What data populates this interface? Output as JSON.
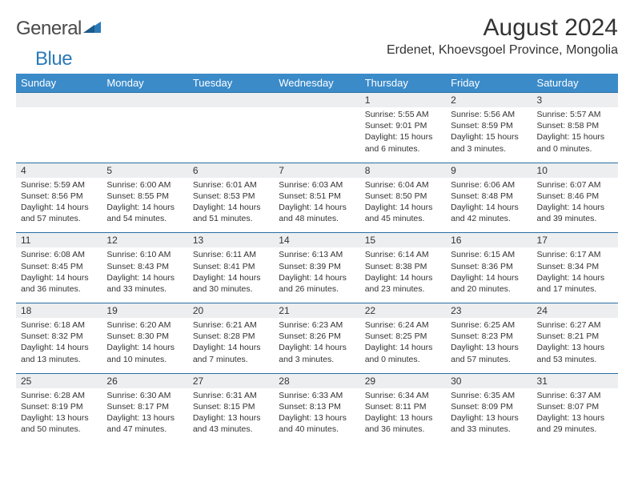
{
  "logo": {
    "text1": "General",
    "text2": "Blue"
  },
  "title": "August 2024",
  "location": "Erdenet, Khoevsgoel Province, Mongolia",
  "colors": {
    "header_bg": "#3b8bc9",
    "header_text": "#ffffff",
    "daynum_bg": "#eceef0",
    "row_border": "#2a6fa3",
    "logo_blue": "#2a7ab8",
    "text": "#333333",
    "page_bg": "#ffffff"
  },
  "fonts": {
    "title_size": 30,
    "location_size": 16,
    "weekday_size": 13,
    "daynum_size": 12,
    "detail_size": 10.5
  },
  "weekdays": [
    "Sunday",
    "Monday",
    "Tuesday",
    "Wednesday",
    "Thursday",
    "Friday",
    "Saturday"
  ],
  "weeks": [
    [
      null,
      null,
      null,
      null,
      {
        "n": "1",
        "sr": "5:55 AM",
        "ss": "9:01 PM",
        "dl": "15 hours and 6 minutes."
      },
      {
        "n": "2",
        "sr": "5:56 AM",
        "ss": "8:59 PM",
        "dl": "15 hours and 3 minutes."
      },
      {
        "n": "3",
        "sr": "5:57 AM",
        "ss": "8:58 PM",
        "dl": "15 hours and 0 minutes."
      }
    ],
    [
      {
        "n": "4",
        "sr": "5:59 AM",
        "ss": "8:56 PM",
        "dl": "14 hours and 57 minutes."
      },
      {
        "n": "5",
        "sr": "6:00 AM",
        "ss": "8:55 PM",
        "dl": "14 hours and 54 minutes."
      },
      {
        "n": "6",
        "sr": "6:01 AM",
        "ss": "8:53 PM",
        "dl": "14 hours and 51 minutes."
      },
      {
        "n": "7",
        "sr": "6:03 AM",
        "ss": "8:51 PM",
        "dl": "14 hours and 48 minutes."
      },
      {
        "n": "8",
        "sr": "6:04 AM",
        "ss": "8:50 PM",
        "dl": "14 hours and 45 minutes."
      },
      {
        "n": "9",
        "sr": "6:06 AM",
        "ss": "8:48 PM",
        "dl": "14 hours and 42 minutes."
      },
      {
        "n": "10",
        "sr": "6:07 AM",
        "ss": "8:46 PM",
        "dl": "14 hours and 39 minutes."
      }
    ],
    [
      {
        "n": "11",
        "sr": "6:08 AM",
        "ss": "8:45 PM",
        "dl": "14 hours and 36 minutes."
      },
      {
        "n": "12",
        "sr": "6:10 AM",
        "ss": "8:43 PM",
        "dl": "14 hours and 33 minutes."
      },
      {
        "n": "13",
        "sr": "6:11 AM",
        "ss": "8:41 PM",
        "dl": "14 hours and 30 minutes."
      },
      {
        "n": "14",
        "sr": "6:13 AM",
        "ss": "8:39 PM",
        "dl": "14 hours and 26 minutes."
      },
      {
        "n": "15",
        "sr": "6:14 AM",
        "ss": "8:38 PM",
        "dl": "14 hours and 23 minutes."
      },
      {
        "n": "16",
        "sr": "6:15 AM",
        "ss": "8:36 PM",
        "dl": "14 hours and 20 minutes."
      },
      {
        "n": "17",
        "sr": "6:17 AM",
        "ss": "8:34 PM",
        "dl": "14 hours and 17 minutes."
      }
    ],
    [
      {
        "n": "18",
        "sr": "6:18 AM",
        "ss": "8:32 PM",
        "dl": "14 hours and 13 minutes."
      },
      {
        "n": "19",
        "sr": "6:20 AM",
        "ss": "8:30 PM",
        "dl": "14 hours and 10 minutes."
      },
      {
        "n": "20",
        "sr": "6:21 AM",
        "ss": "8:28 PM",
        "dl": "14 hours and 7 minutes."
      },
      {
        "n": "21",
        "sr": "6:23 AM",
        "ss": "8:26 PM",
        "dl": "14 hours and 3 minutes."
      },
      {
        "n": "22",
        "sr": "6:24 AM",
        "ss": "8:25 PM",
        "dl": "14 hours and 0 minutes."
      },
      {
        "n": "23",
        "sr": "6:25 AM",
        "ss": "8:23 PM",
        "dl": "13 hours and 57 minutes."
      },
      {
        "n": "24",
        "sr": "6:27 AM",
        "ss": "8:21 PM",
        "dl": "13 hours and 53 minutes."
      }
    ],
    [
      {
        "n": "25",
        "sr": "6:28 AM",
        "ss": "8:19 PM",
        "dl": "13 hours and 50 minutes."
      },
      {
        "n": "26",
        "sr": "6:30 AM",
        "ss": "8:17 PM",
        "dl": "13 hours and 47 minutes."
      },
      {
        "n": "27",
        "sr": "6:31 AM",
        "ss": "8:15 PM",
        "dl": "13 hours and 43 minutes."
      },
      {
        "n": "28",
        "sr": "6:33 AM",
        "ss": "8:13 PM",
        "dl": "13 hours and 40 minutes."
      },
      {
        "n": "29",
        "sr": "6:34 AM",
        "ss": "8:11 PM",
        "dl": "13 hours and 36 minutes."
      },
      {
        "n": "30",
        "sr": "6:35 AM",
        "ss": "8:09 PM",
        "dl": "13 hours and 33 minutes."
      },
      {
        "n": "31",
        "sr": "6:37 AM",
        "ss": "8:07 PM",
        "dl": "13 hours and 29 minutes."
      }
    ]
  ],
  "labels": {
    "sunrise": "Sunrise: ",
    "sunset": "Sunset: ",
    "daylight": "Daylight: "
  }
}
